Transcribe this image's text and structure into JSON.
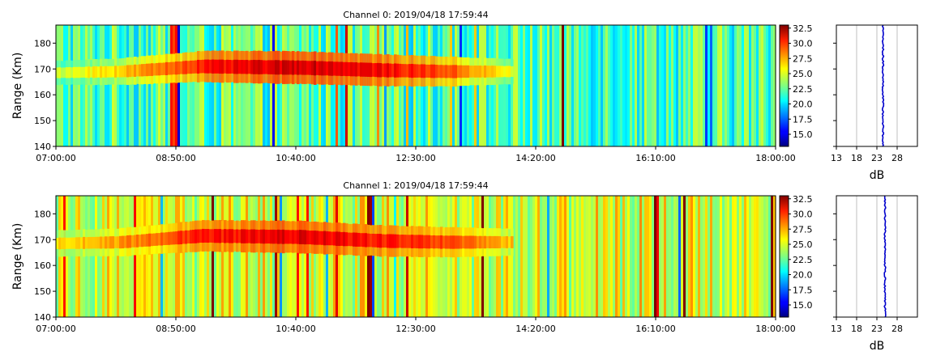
{
  "chart_data": [
    {
      "type": "heatmap",
      "title": "Channel 0: 2019/04/18 17:59:44",
      "ylabel": "Range (Km)",
      "xlabel": "",
      "x_ticks": [
        "07:00:00",
        "08:50:00",
        "10:40:00",
        "12:30:00",
        "14:20:00",
        "16:10:00",
        "18:00:00"
      ],
      "x_range": [
        "07:00:00",
        "18:00:00"
      ],
      "y_ticks": [
        140,
        150,
        160,
        170,
        180
      ],
      "ylim": [
        140,
        187
      ],
      "colorbar": {
        "ticks": [
          "15.0",
          "17.5",
          "20.0",
          "22.5",
          "25.0",
          "27.5",
          "30.0",
          "32.5"
        ],
        "range": [
          13,
          33
        ],
        "colormap": "jet"
      },
      "background_level_db": 22,
      "echo_band": {
        "center_range_km": 170,
        "points": [
          {
            "time": "07:00:00",
            "range_km": 168.5,
            "level_db": 24.5
          },
          {
            "time": "08:00:00",
            "range_km": 169.0,
            "level_db": 26.5
          },
          {
            "time": "09:15:00",
            "range_km": 171.0,
            "level_db": 30.0
          },
          {
            "time": "10:45:00",
            "range_km": 170.5,
            "level_db": 31.5
          },
          {
            "time": "12:00:00",
            "range_km": 169.5,
            "level_db": 30.5
          },
          {
            "time": "13:00:00",
            "range_km": 169.0,
            "level_db": 29.0
          },
          {
            "time": "14:00:00",
            "range_km": 169.0,
            "level_db": 25.0
          }
        ]
      },
      "profile": {
        "xlabel": "dB",
        "x_ticks": [
          13,
          18,
          23,
          28
        ],
        "xlim": [
          13,
          33
        ],
        "mean_db": 24.5,
        "grid": true,
        "color": "#0000cc"
      }
    },
    {
      "type": "heatmap",
      "title": "Channel 1: 2019/04/18 17:59:44",
      "ylabel": "Range (Km)",
      "xlabel": "",
      "x_ticks": [
        "07:00:00",
        "08:50:00",
        "10:40:00",
        "12:30:00",
        "14:20:00",
        "16:10:00",
        "18:00:00"
      ],
      "x_range": [
        "07:00:00",
        "18:00:00"
      ],
      "y_ticks": [
        140,
        150,
        160,
        170,
        180
      ],
      "ylim": [
        140,
        187
      ],
      "colorbar": {
        "ticks": [
          "15.0",
          "17.5",
          "20.0",
          "22.5",
          "25.0",
          "27.5",
          "30.0",
          "32.5"
        ],
        "range": [
          13,
          33
        ],
        "colormap": "jet"
      },
      "background_level_db": 25,
      "echo_band": {
        "center_range_km": 170,
        "points": [
          {
            "time": "07:00:00",
            "range_km": 168.5,
            "level_db": 26.0
          },
          {
            "time": "08:00:00",
            "range_km": 169.0,
            "level_db": 27.5
          },
          {
            "time": "09:15:00",
            "range_km": 171.5,
            "level_db": 30.0
          },
          {
            "time": "10:45:00",
            "range_km": 171.0,
            "level_db": 31.0
          },
          {
            "time": "12:00:00",
            "range_km": 169.5,
            "level_db": 30.0
          },
          {
            "time": "13:00:00",
            "range_km": 169.0,
            "level_db": 29.0
          },
          {
            "time": "14:00:00",
            "range_km": 169.0,
            "level_db": 26.5
          }
        ]
      },
      "profile": {
        "xlabel": "dB",
        "x_ticks": [
          13,
          18,
          23,
          28
        ],
        "xlim": [
          13,
          33
        ],
        "mean_db": 25.0,
        "grid": true,
        "color": "#0000cc"
      }
    }
  ]
}
